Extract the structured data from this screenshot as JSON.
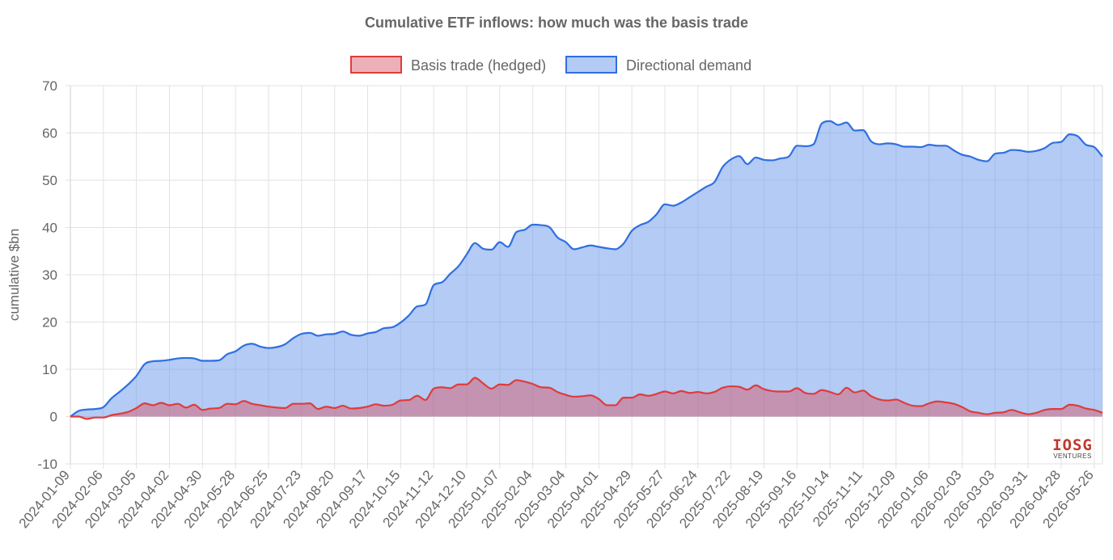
{
  "chart_data": {
    "type": "area",
    "title": "Cumulative ETF inflows: how much was the basis trade",
    "xlabel": "",
    "ylabel": "cumulative $bn",
    "ylim": [
      -10,
      70
    ],
    "yticks": [
      -10,
      0,
      10,
      20,
      30,
      40,
      50,
      60,
      70
    ],
    "grid": true,
    "legend_position": "top-center",
    "x_tick_labels": [
      "2024-01-09",
      "2024-02-06",
      "2024-03-05",
      "2024-04-02",
      "2024-04-30",
      "2024-05-28",
      "2024-06-25",
      "2024-07-23",
      "2024-08-20",
      "2024-09-17",
      "2024-10-15",
      "2024-11-12",
      "2024-12-10",
      "2025-01-07",
      "2025-02-04",
      "2025-03-04",
      "2025-04-01",
      "2025-04-29",
      "2025-05-27",
      "2025-06-24",
      "2025-07-22",
      "2025-08-19",
      "2025-09-16",
      "2025-10-14",
      "2025-11-11",
      "2025-12-09",
      "2026-01-06",
      "2026-02-03",
      "2026-03-03",
      "2026-03-31",
      "2026-04-28",
      "2026-05-26"
    ],
    "x_start": "2024-01-09",
    "x_end": "2026-06-02",
    "series": [
      {
        "name": "Basis trade (hedged)",
        "line_color": "#e03b3b",
        "fill_color": "rgba(215, 80, 95, 0.45)",
        "x": [
          "2024-01-09",
          "2024-01-16",
          "2024-01-23",
          "2024-01-30",
          "2024-02-06",
          "2024-02-13",
          "2024-02-20",
          "2024-02-27",
          "2024-03-05",
          "2024-03-12",
          "2024-03-19",
          "2024-03-26",
          "2024-04-02",
          "2024-04-09",
          "2024-04-16",
          "2024-04-23",
          "2024-04-30",
          "2024-05-07",
          "2024-05-14",
          "2024-05-21",
          "2024-05-28",
          "2024-06-04",
          "2024-06-11",
          "2024-06-18",
          "2024-06-25",
          "2024-07-02",
          "2024-07-09",
          "2024-07-16",
          "2024-07-23",
          "2024-07-30",
          "2024-08-06",
          "2024-08-13",
          "2024-08-20",
          "2024-08-27",
          "2024-09-03",
          "2024-09-10",
          "2024-09-17",
          "2024-09-24",
          "2024-10-01",
          "2024-10-08",
          "2024-10-15",
          "2024-10-22",
          "2024-10-29",
          "2024-11-05",
          "2024-11-12",
          "2024-11-19",
          "2024-11-26",
          "2024-12-03",
          "2024-12-10",
          "2024-12-17",
          "2024-12-24",
          "2024-12-31",
          "2025-01-07",
          "2025-01-14",
          "2025-01-21",
          "2025-01-28",
          "2025-02-04",
          "2025-02-11",
          "2025-02-18",
          "2025-02-25",
          "2025-03-04",
          "2025-03-11",
          "2025-03-18",
          "2025-03-25",
          "2025-04-01",
          "2025-04-08",
          "2025-04-15",
          "2025-04-22",
          "2025-04-29",
          "2025-05-06",
          "2025-05-13",
          "2025-05-20",
          "2025-05-27",
          "2025-06-03",
          "2025-06-10",
          "2025-06-17",
          "2025-06-24",
          "2025-07-01",
          "2025-07-08",
          "2025-07-15",
          "2025-07-22",
          "2025-07-29",
          "2025-08-05",
          "2025-08-12",
          "2025-08-19",
          "2025-08-26",
          "2025-09-02",
          "2025-09-09",
          "2025-09-16",
          "2025-09-23",
          "2025-09-30",
          "2025-10-07",
          "2025-10-14",
          "2025-10-21",
          "2025-10-28",
          "2025-11-04",
          "2025-11-11",
          "2025-11-18",
          "2025-11-25",
          "2025-12-02",
          "2025-12-09",
          "2025-12-16",
          "2025-12-23",
          "2025-12-30",
          "2026-01-06",
          "2026-01-13",
          "2026-01-20",
          "2026-01-27",
          "2026-02-03",
          "2026-02-10",
          "2026-02-17",
          "2026-02-24",
          "2026-03-03",
          "2026-03-10",
          "2026-03-17",
          "2026-03-24",
          "2026-03-31",
          "2026-04-07",
          "2026-04-14",
          "2026-04-21",
          "2026-04-28",
          "2026-05-05",
          "2026-05-12",
          "2026-05-19",
          "2026-05-26",
          "2026-06-02"
        ],
        "values": [
          0,
          0,
          -0.5,
          -0.2,
          -0.2,
          0.3,
          0.6,
          1.0,
          1.8,
          2.8,
          2.4,
          2.9,
          2.4,
          2.7,
          1.9,
          2.5,
          1.4,
          1.7,
          1.8,
          2.7,
          2.6,
          3.3,
          2.7,
          2.4,
          2.1,
          1.9,
          1.8,
          2.7,
          2.7,
          2.8,
          1.6,
          2.1,
          1.8,
          2.3,
          1.7,
          1.8,
          2.1,
          2.6,
          2.3,
          2.5,
          3.4,
          3.5,
          4.4,
          3.5,
          5.9,
          6.2,
          6.0,
          6.8,
          6.8,
          8.2,
          7.0,
          5.9,
          6.8,
          6.7,
          7.7,
          7.4,
          6.9,
          6.2,
          6.1,
          5.2,
          4.6,
          4.2,
          4.3,
          4.5,
          3.7,
          2.4,
          2.4,
          4.0,
          4.0,
          4.7,
          4.4,
          4.8,
          5.3,
          4.9,
          5.4,
          5.0,
          5.2,
          4.9,
          5.2,
          6.1,
          6.4,
          6.3,
          5.7,
          6.6,
          5.8,
          5.4,
          5.3,
          5.3,
          6.0,
          5.0,
          4.8,
          5.6,
          5.2,
          4.7,
          6.1,
          5.1,
          5.5,
          4.3,
          3.6,
          3.4,
          3.6,
          2.9,
          2.3,
          2.2,
          2.8,
          3.2,
          3.0,
          2.7,
          2.0,
          1.1,
          0.8,
          0.5,
          0.8,
          0.9,
          1.4,
          0.9,
          0.5,
          0.8,
          1.4,
          1.6,
          1.6,
          2.5,
          2.3,
          1.7,
          1.4,
          0.8
        ]
      },
      {
        "name": "Directional demand",
        "line_color": "#2f6fe0",
        "fill_color": "rgba(110, 155, 235, 0.52)",
        "x": [
          "2024-01-09",
          "2024-01-16",
          "2024-01-23",
          "2024-01-30",
          "2024-02-06",
          "2024-02-13",
          "2024-02-20",
          "2024-02-27",
          "2024-03-05",
          "2024-03-12",
          "2024-03-19",
          "2024-03-26",
          "2024-04-02",
          "2024-04-09",
          "2024-04-16",
          "2024-04-23",
          "2024-04-30",
          "2024-05-07",
          "2024-05-14",
          "2024-05-21",
          "2024-05-28",
          "2024-06-04",
          "2024-06-11",
          "2024-06-18",
          "2024-06-25",
          "2024-07-02",
          "2024-07-09",
          "2024-07-16",
          "2024-07-23",
          "2024-07-30",
          "2024-08-06",
          "2024-08-13",
          "2024-08-20",
          "2024-08-27",
          "2024-09-03",
          "2024-09-10",
          "2024-09-17",
          "2024-09-24",
          "2024-10-01",
          "2024-10-08",
          "2024-10-15",
          "2024-10-22",
          "2024-10-29",
          "2024-11-05",
          "2024-11-12",
          "2024-11-19",
          "2024-11-26",
          "2024-12-03",
          "2024-12-10",
          "2024-12-17",
          "2024-12-24",
          "2024-12-31",
          "2025-01-07",
          "2025-01-14",
          "2025-01-21",
          "2025-01-28",
          "2025-02-04",
          "2025-02-11",
          "2025-02-18",
          "2025-02-25",
          "2025-03-04",
          "2025-03-11",
          "2025-03-18",
          "2025-03-25",
          "2025-04-01",
          "2025-04-08",
          "2025-04-15",
          "2025-04-22",
          "2025-04-29",
          "2025-05-06",
          "2025-05-13",
          "2025-05-20",
          "2025-05-27",
          "2025-06-03",
          "2025-06-10",
          "2025-06-17",
          "2025-06-24",
          "2025-07-01",
          "2025-07-08",
          "2025-07-15",
          "2025-07-22",
          "2025-07-29",
          "2025-08-05",
          "2025-08-12",
          "2025-08-19",
          "2025-08-26",
          "2025-09-02",
          "2025-09-09",
          "2025-09-16",
          "2025-09-23",
          "2025-09-30",
          "2025-10-07",
          "2025-10-14",
          "2025-10-21",
          "2025-10-28",
          "2025-11-04",
          "2025-11-11",
          "2025-11-18",
          "2025-11-25",
          "2025-12-02",
          "2025-12-09",
          "2025-12-16",
          "2025-12-23",
          "2025-12-30",
          "2026-01-06",
          "2026-01-13",
          "2026-01-20",
          "2026-01-27",
          "2026-02-03",
          "2026-02-10",
          "2026-02-17",
          "2026-02-24",
          "2026-03-03",
          "2026-03-10",
          "2026-03-17",
          "2026-03-24",
          "2026-03-31",
          "2026-04-07",
          "2026-04-14",
          "2026-04-21",
          "2026-04-28",
          "2026-05-05",
          "2026-05-12",
          "2026-05-19",
          "2026-05-26",
          "2026-06-02"
        ],
        "values": [
          0,
          1.2,
          1.5,
          1.6,
          2.0,
          3.9,
          5.3,
          6.8,
          8.6,
          11.1,
          11.7,
          11.8,
          12.0,
          12.3,
          12.4,
          12.3,
          11.8,
          11.8,
          11.9,
          13.2,
          13.8,
          15.0,
          15.4,
          14.8,
          14.5,
          14.7,
          15.3,
          16.6,
          17.5,
          17.7,
          17.1,
          17.4,
          17.5,
          18.0,
          17.3,
          17.1,
          17.6,
          17.9,
          18.7,
          18.9,
          19.9,
          21.4,
          23.3,
          23.7,
          27.8,
          28.4,
          30.2,
          31.8,
          34.3,
          36.7,
          35.5,
          35.3,
          36.9,
          35.9,
          39.0,
          39.5,
          40.6,
          40.5,
          40.1,
          37.9,
          36.9,
          35.4,
          35.8,
          36.2,
          35.9,
          35.6,
          35.4,
          36.6,
          39.3,
          40.5,
          41.2,
          42.8,
          44.9,
          44.6,
          45.3,
          46.4,
          47.5,
          48.6,
          49.6,
          52.8,
          54.4,
          55.1,
          53.4,
          54.8,
          54.3,
          54.2,
          54.6,
          55.0,
          57.3,
          57.2,
          57.6,
          62.0,
          62.5,
          61.7,
          62.2,
          60.5,
          60.6,
          58.2,
          57.6,
          57.8,
          57.6,
          57.1,
          57.1,
          57.0,
          57.5,
          57.3,
          57.3,
          56.3,
          55.4,
          55.0,
          54.3,
          54.0,
          55.6,
          55.8,
          56.4,
          56.3,
          56.0,
          56.2,
          56.8,
          57.9,
          58.1,
          59.7,
          59.3,
          57.5,
          57.0,
          55.0
        ]
      }
    ]
  },
  "watermark": {
    "logo_text": "IOSG",
    "sub_text": "VENTURES"
  }
}
